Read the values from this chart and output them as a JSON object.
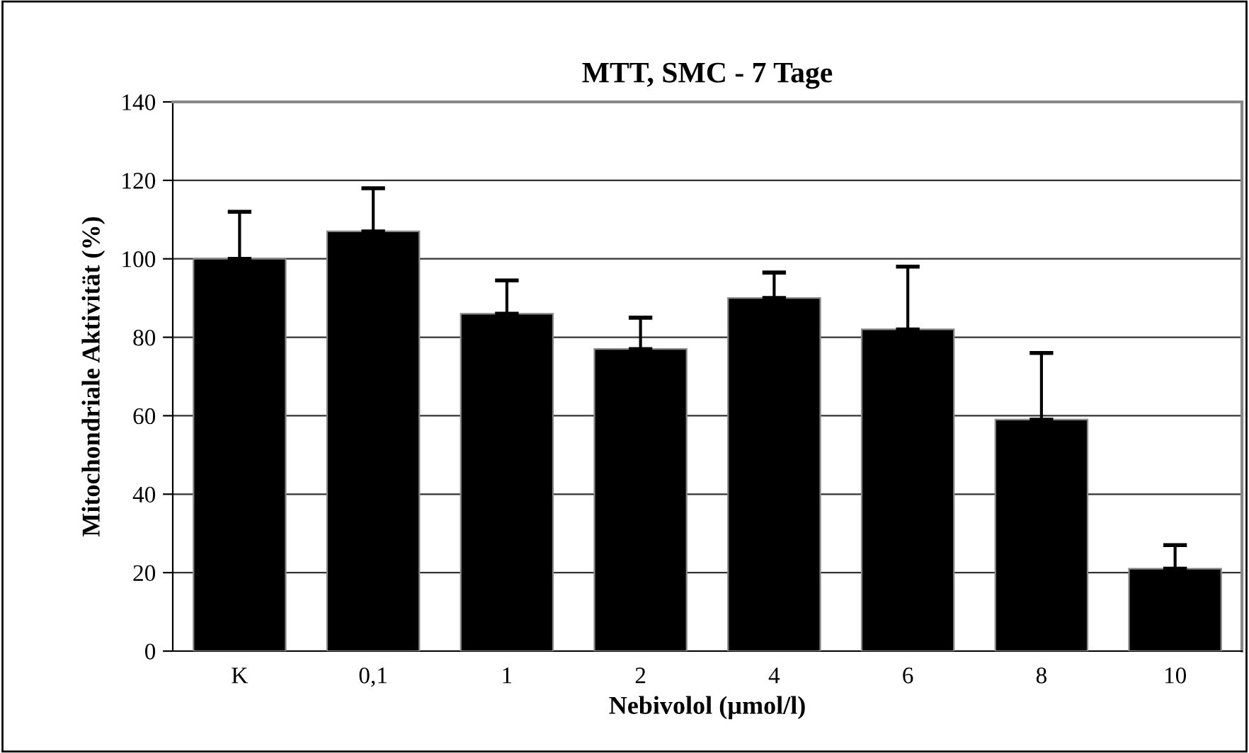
{
  "chart_data": {
    "type": "bar",
    "title": "MTT, SMC - 7 Tage",
    "xlabel": "Nebivolol (µmol/l)",
    "ylabel": "Mitochondriale Aktivität (%)",
    "categories": [
      "K",
      "0,1",
      "1",
      "2",
      "4",
      "6",
      "8",
      "10"
    ],
    "values": [
      100,
      107,
      86,
      77,
      90,
      82,
      59,
      21
    ],
    "errors": [
      [
        100,
        112
      ],
      [
        107,
        118
      ],
      [
        86,
        94.5
      ],
      [
        77,
        85
      ],
      [
        90,
        96.5
      ],
      [
        82,
        98
      ],
      [
        59,
        76
      ],
      [
        21,
        27
      ]
    ],
    "color": "#000000",
    "ylim": [
      0,
      140
    ],
    "yticks": [
      0,
      20,
      40,
      60,
      80,
      100,
      120,
      140
    ],
    "grid": "y",
    "legend": false
  }
}
